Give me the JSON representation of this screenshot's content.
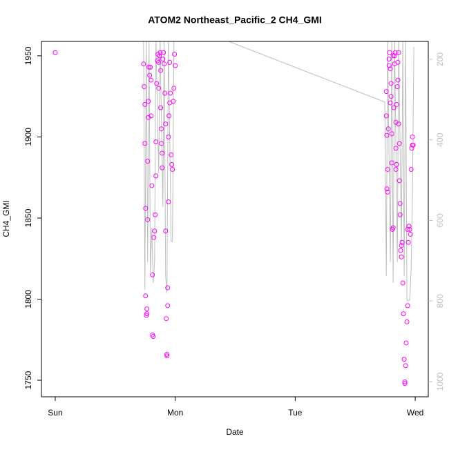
{
  "chart_data": {
    "type": "scatter",
    "title": "ATOM2 Northeast_Pacific_2 CH4_GMI",
    "xlabel": "Date",
    "ylabel": "CH4_GMI",
    "xlim": [
      -0.115,
      3.109
    ],
    "ylim": [
      1739.8,
      1958.9
    ],
    "y2lim": [
      1037.7,
      155.5
    ],
    "xticks": [
      {
        "value": 0,
        "label": "Sun"
      },
      {
        "value": 1,
        "label": "Mon"
      },
      {
        "value": 2,
        "label": "Tue"
      },
      {
        "value": 3,
        "label": "Wed"
      }
    ],
    "yticks": [
      1750,
      1800,
      1850,
      1900,
      1950
    ],
    "y2ticks": [
      200,
      400,
      600,
      800,
      1000
    ],
    "series": [
      {
        "type": "scatter",
        "color": "#ff00ff",
        "x": [
          0,
          0.736,
          0.741,
          0.747,
          0.747,
          0.753,
          0.753,
          0.759,
          0.764,
          0.764,
          0.77,
          0.77,
          0.776,
          0.776,
          0.782,
          0.787,
          0.793,
          0.799,
          0.799,
          0.805,
          0.81,
          0.81,
          0.816,
          0.822,
          0.828,
          0.833,
          0.839,
          0.839,
          0.845,
          0.851,
          0.856,
          0.862,
          0.862,
          0.868,
          0.874,
          0.879,
          0.879,
          0.885,
          0.885,
          0.891,
          0.897,
          0.902,
          0.908,
          0.914,
          0.92,
          0.92,
          0.925,
          0.931,
          0.931,
          0.937,
          0.937,
          0.943,
          0.943,
          0.948,
          0.954,
          0.954,
          0.96,
          0.966,
          0.971,
          0.977,
          0.983,
          0.989,
          0.994,
          1.0,
          0.891,
          2.759,
          2.759,
          2.764,
          2.764,
          2.77,
          2.77,
          2.776,
          2.782,
          2.782,
          2.787,
          2.793,
          2.799,
          2.799,
          2.805,
          2.805,
          2.81,
          2.816,
          2.822,
          2.828,
          2.828,
          2.833,
          2.839,
          2.839,
          2.845,
          2.851,
          2.856,
          2.862,
          2.862,
          2.868,
          2.874,
          2.874,
          2.879,
          2.885,
          2.891,
          2.897,
          2.902,
          2.908,
          2.914,
          2.92,
          2.925,
          2.931,
          2.937,
          2.943,
          2.948,
          2.954,
          2.96,
          2.966,
          2.971,
          2.977,
          2.977,
          2.983,
          2.839,
          2.816,
          2.793,
          2.845,
          2.868,
          2.885,
          2.914,
          2.937,
          2.856
        ],
        "values": [
          1952,
          1945,
          1931,
          1920,
          1896,
          1856,
          1802,
          1790,
          1791,
          1794,
          1849,
          1885,
          1912,
          1922,
          1943,
          1938,
          1943,
          1935,
          1913,
          1870,
          1815,
          1778,
          1777,
          1838,
          1842,
          1852,
          1876,
          1897,
          1933,
          1947,
          1951,
          1946,
          1930,
          1950,
          1952,
          1941,
          1918,
          1905,
          1896,
          1881,
          1948,
          1952,
          1945,
          1927,
          1908,
          1842,
          1788,
          1766,
          1765,
          1796,
          1807,
          1860,
          1900,
          1913,
          1921,
          1946,
          1927,
          1889,
          1883,
          1880,
          1922,
          1930,
          1951,
          1944,
          1890,
          1928,
          1913,
          1901,
          1868,
          1866,
          1880,
          1905,
          1944,
          1948,
          1952,
          1921,
          1925,
          1933,
          1902,
          1884,
          1843,
          1844,
          1918,
          1945,
          1950,
          1952,
          1893,
          1880,
          1883,
          1931,
          1935,
          1952,
          1908,
          1896,
          1859,
          1852,
          1830,
          1826,
          1835,
          1810,
          1791,
          1763,
          1749,
          1759,
          1773,
          1786,
          1796,
          1835,
          1845,
          1843,
          1840,
          1880,
          1893,
          1895,
          1900,
          1895,
          1909,
          1950,
          1942,
          1920,
          1873,
          1833,
          1748,
          1843,
          1946
        ]
      },
      {
        "type": "line",
        "axis": "y2",
        "color": "#bebebe",
        "x": [
          0.736,
          0.747,
          0.759,
          0.77,
          0.782,
          0.793,
          0.805,
          0.816,
          0.828,
          0.839,
          0.862,
          0.874,
          0.897,
          0.908,
          0.92,
          0.931,
          0.943,
          0.966,
          0.977,
          0.989,
          1.0,
          1.397,
          2.747,
          2.759,
          2.77,
          2.793,
          2.805,
          2.816,
          2.828,
          2.851,
          2.862,
          2.885,
          2.897,
          2.908,
          2.92,
          2.931,
          2.954,
          2.966,
          2.977,
          2.989
        ],
        "values": [
          150,
          772,
          150,
          703,
          150,
          729,
          618,
          755,
          703,
          150,
          481,
          150,
          566,
          150,
          738,
          780,
          150,
          652,
          652,
          150,
          150,
          150,
          306,
          738,
          150,
          703,
          150,
          755,
          150,
          703,
          150,
          669,
          150,
          738,
          150,
          798,
          798,
          721,
          532,
          169
        ]
      }
    ]
  }
}
